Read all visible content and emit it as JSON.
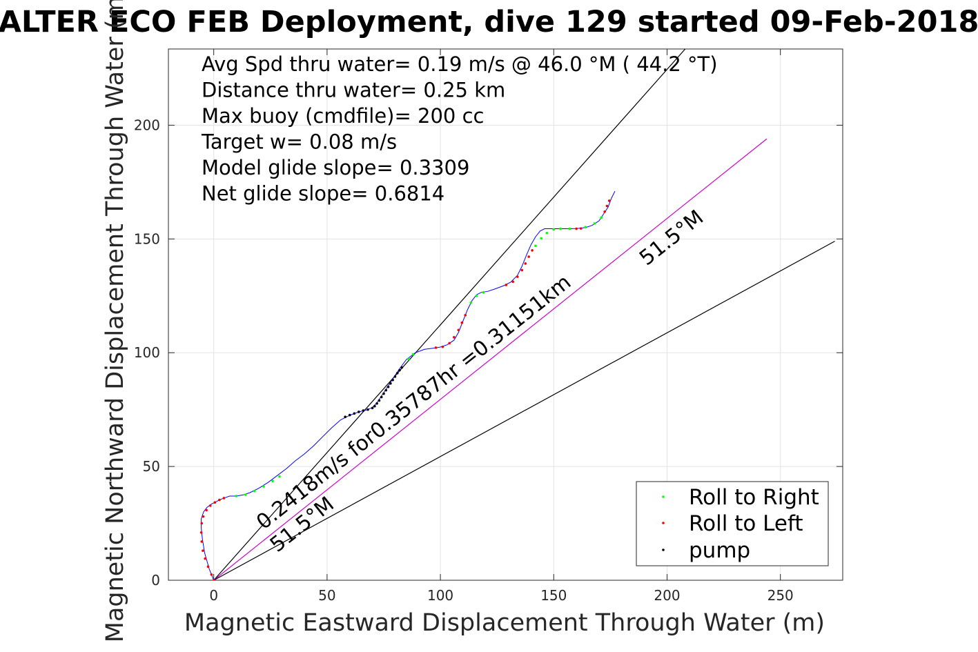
{
  "chart_data": {
    "type": "line",
    "title": "ALTER ECO FEB Deployment, dive 129 started 09-Feb-2018",
    "xlabel": "Magnetic Eastward Displacement Through Water (m)",
    "ylabel": "Magnetic Northward Displacement Through Water (m)",
    "xlim": [
      -20,
      277.5
    ],
    "ylim": [
      0,
      233.5
    ],
    "xticks": [
      0,
      50,
      100,
      150,
      200,
      250
    ],
    "yticks": [
      0,
      50,
      100,
      150,
      200
    ],
    "grid": true,
    "legend_position": "bottom-right",
    "stats": [
      "Avg Spd thru water=  0.19 m/s @  46.0 °M ( 44.2 °T)",
      "Distance thru water=  0.25 km",
      "Max buoy (cmdfile)= 200 cc",
      "Target w= 0.08 m/s",
      "Model glide slope= 0.3309",
      "Net glide slope= 0.6814"
    ],
    "annotations": [
      {
        "text": "0.2418m/s for0.35787hr =0.31151km",
        "x": 22,
        "y": 22,
        "angle_deg": 38.5
      },
      {
        "text": "51.5°M",
        "x": 28,
        "y": 12,
        "angle_deg": 38.5
      },
      {
        "text": "51.5°M",
        "x": 191,
        "y": 138,
        "angle_deg": 38.5
      }
    ],
    "reference_lines": [
      {
        "name": "upper-bound",
        "color": "#000000",
        "x": [
          0,
          208
        ],
        "y": [
          0,
          233.5
        ]
      },
      {
        "name": "heading-line",
        "color": "#cc00cc",
        "x": [
          0,
          244
        ],
        "y": [
          0,
          194
        ]
      },
      {
        "name": "lower-bound",
        "color": "#000000",
        "x": [
          0,
          274
        ],
        "y": [
          0,
          149
        ]
      }
    ],
    "series": [
      {
        "name": "track",
        "color": "#0000ff",
        "x": [
          0,
          -2,
          -4,
          -5,
          -5.5,
          -5.5,
          -4.5,
          -3,
          -1,
          1,
          3,
          5,
          7,
          10,
          13,
          16,
          20,
          24,
          28,
          32,
          36,
          40,
          44,
          48,
          52,
          56,
          60,
          64,
          68,
          70,
          72,
          74,
          76,
          78,
          80,
          82,
          85,
          89,
          93,
          97,
          100,
          103,
          106,
          108,
          110,
          112,
          114,
          116,
          118,
          121,
          124,
          128,
          131,
          134,
          136,
          138,
          140,
          142,
          144,
          146,
          148,
          150,
          153,
          156,
          160,
          164,
          167,
          170,
          172,
          174,
          175.5,
          177
        ],
        "y": [
          0,
          5,
          12,
          18,
          23,
          27,
          30,
          32,
          33.5,
          34.5,
          35.5,
          36.3,
          37,
          37,
          37.5,
          38.5,
          40.5,
          43,
          46,
          49,
          52.5,
          55.5,
          59,
          63,
          67,
          70.5,
          72.5,
          74,
          75,
          76,
          78,
          81,
          84,
          87,
          90,
          93,
          97,
          100,
          101.5,
          102,
          102.5,
          103.5,
          105.5,
          109,
          114,
          119,
          123,
          125.5,
          126.5,
          127,
          128,
          129.5,
          131,
          134,
          138,
          143,
          147.5,
          151,
          153.5,
          154.5,
          154.5,
          154.5,
          154.5,
          154.5,
          154.6,
          155,
          156,
          158,
          161,
          164,
          168,
          171
        ]
      },
      {
        "name": "Roll to Right",
        "color": "#00ff00",
        "points": [
          [
            10,
            37
          ],
          [
            14,
            37.6
          ],
          [
            18,
            39.2
          ],
          [
            22,
            41.2
          ],
          [
            26,
            43.6
          ],
          [
            29,
            45.6
          ],
          [
            86,
            97.2
          ],
          [
            88,
            99.3
          ],
          [
            113.5,
            122
          ],
          [
            116,
            125
          ],
          [
            119,
            126.5
          ],
          [
            142,
            147
          ],
          [
            144.5,
            150.3
          ],
          [
            147,
            152.6
          ],
          [
            150,
            154.2
          ],
          [
            153,
            154.5
          ],
          [
            157,
            154.5
          ],
          [
            164,
            155.2
          ],
          [
            168,
            156.8
          ],
          [
            171,
            159.4
          ]
        ]
      },
      {
        "name": "Roll to Left",
        "color": "#ff0000",
        "points": [
          [
            0,
            0
          ],
          [
            -1,
            2.5
          ],
          [
            -2.5,
            6
          ],
          [
            -3.8,
            9.5
          ],
          [
            -4.8,
            13
          ],
          [
            -5.3,
            17
          ],
          [
            -5.5,
            21
          ],
          [
            -5.3,
            25
          ],
          [
            -4.6,
            28
          ],
          [
            -3.2,
            30.8
          ],
          [
            -1.5,
            32.8
          ],
          [
            0.5,
            34.2
          ],
          [
            2.5,
            35.3
          ],
          [
            4.5,
            36.1
          ],
          [
            98,
            102.2
          ],
          [
            101,
            102.6
          ],
          [
            104,
            104.2
          ],
          [
            106,
            106.8
          ],
          [
            108,
            110
          ],
          [
            109.5,
            113.2
          ],
          [
            111,
            116.5
          ],
          [
            129,
            129.8
          ],
          [
            132,
            131.2
          ],
          [
            134,
            133.4
          ],
          [
            136,
            136.3
          ],
          [
            137.5,
            139.2
          ],
          [
            139,
            142.2
          ],
          [
            140.5,
            145
          ],
          [
            160,
            154.5
          ],
          [
            162,
            154.6
          ],
          [
            172.5,
            162
          ],
          [
            173.5,
            164.5
          ],
          [
            174.5,
            166.8
          ]
        ]
      },
      {
        "name": "pump",
        "color": "#000000",
        "points": [
          [
            58,
            71.8
          ],
          [
            60,
            72.6
          ],
          [
            62,
            73.3
          ],
          [
            64,
            74
          ],
          [
            66,
            74.6
          ],
          [
            68,
            75
          ],
          [
            70,
            75.7
          ],
          [
            71,
            76.5
          ],
          [
            72,
            77.7
          ],
          [
            73,
            79
          ],
          [
            74,
            80.5
          ],
          [
            75,
            82
          ],
          [
            76,
            83.5
          ],
          [
            77,
            85
          ],
          [
            78,
            86.5
          ],
          [
            79,
            88
          ],
          [
            80,
            89.5
          ],
          [
            81,
            91
          ],
          [
            82,
            92.3
          ],
          [
            83,
            93.5
          ]
        ]
      }
    ],
    "legend": [
      {
        "label": "Roll to Right",
        "color": "#00ff00"
      },
      {
        "label": "Roll to Left",
        "color": "#ff0000"
      },
      {
        "label": "pump",
        "color": "#000000"
      }
    ]
  }
}
